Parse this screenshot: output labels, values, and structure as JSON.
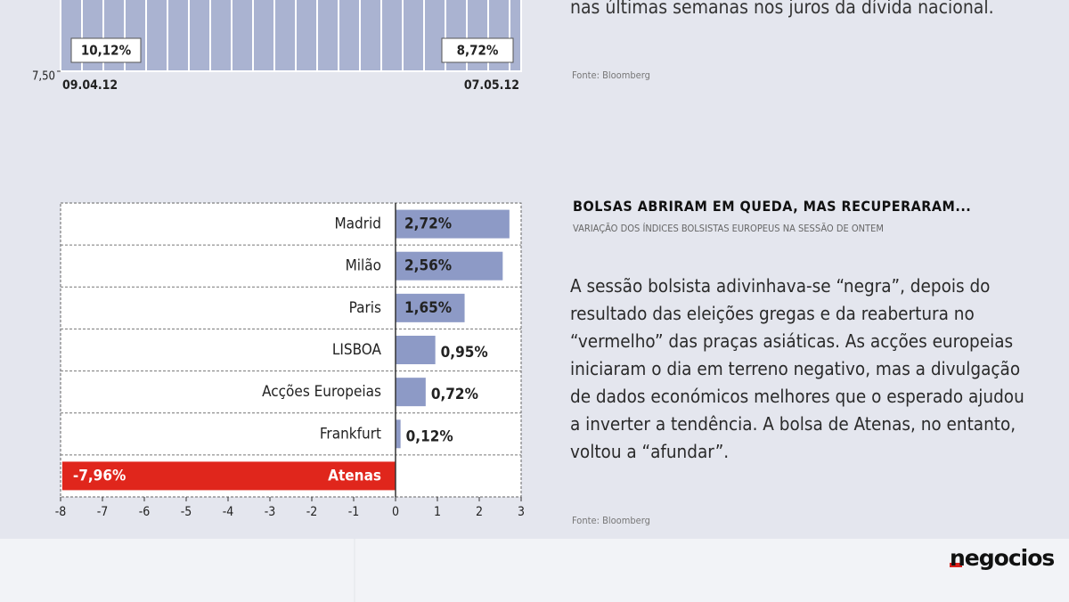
{
  "chart_data": [
    {
      "type": "line",
      "x": [
        "09.04.12",
        "07.05.12"
      ],
      "values": [
        10.12,
        8.72
      ],
      "value_labels": [
        "10,12%",
        "8,72%"
      ],
      "color": "#ffffff",
      "area_color": "#aab3d1",
      "ylim": [
        7.5,
        10.5
      ],
      "yticks": [
        {
          "value": 7.5,
          "label": "7,50"
        }
      ],
      "annotations": [
        "nas últimas semanas nos juros da dívida nacional.",
        "Fonte: Bloomberg"
      ]
    },
    {
      "type": "hbar",
      "title": "BOLSAS ABRIRAM EM QUEDA, MAS RECUPERARAM...",
      "subtitle": "VARIAÇÃO DOS ÍNDICES BOLSISTAS EUROPEUS NA SESSÃO DE ONTEM",
      "categories": [
        "Madrid",
        "Milão",
        "Paris",
        "LISBOA",
        "Acções Europeias",
        "Frankfurt",
        "Atenas"
      ],
      "values": [
        2.72,
        2.56,
        1.65,
        0.95,
        0.72,
        0.12,
        -7.96
      ],
      "value_labels": [
        "2,72%",
        "2,56%",
        "1,65%",
        "0,95%",
        "0,72%",
        "0,12%",
        "-7,96%"
      ],
      "colors": [
        "#8d9ac6",
        "#8d9ac6",
        "#8d9ac6",
        "#8d9ac6",
        "#8d9ac6",
        "#8d9ac6",
        "#e0261c"
      ],
      "xlim": [
        -8,
        3
      ],
      "xticks": [
        -8,
        -7,
        -6,
        -5,
        -4,
        -3,
        -2,
        -1,
        0,
        1,
        2,
        3
      ],
      "annotations": [
        "A sessão bolsista adivinhava-se “negra”, depois do resultado das eleições gregas e da reabertura no “vermelho” das praças asiáticas. As acções europeias iniciaram o dia em terreno negativo, mas a divulgação de dados económicos melhores que o esperado ajudou a inverter a tendência. A bolsa de Atenas, no entanto, voltou a “afundar”.",
        "Fonte: Bloomberg"
      ]
    }
  ],
  "footer": {
    "brand": "negocios"
  }
}
